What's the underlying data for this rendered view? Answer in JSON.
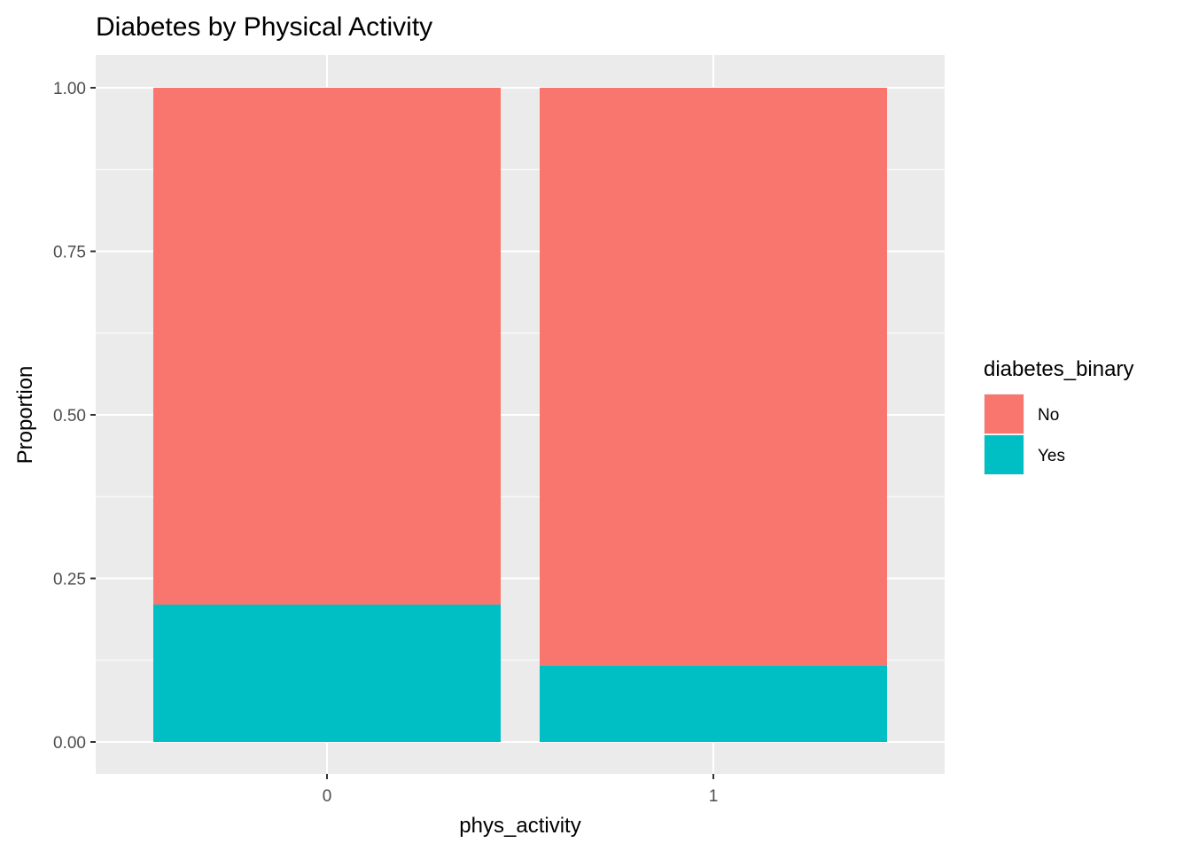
{
  "chart_data": {
    "type": "bar",
    "stacked": true,
    "title": "Diabetes by Physical Activity",
    "xlabel": "phys_activity",
    "ylabel": "Proportion",
    "categories": [
      "0",
      "1"
    ],
    "ylim": [
      0,
      1
    ],
    "yticks": [
      "0.00",
      "0.25",
      "0.50",
      "0.75",
      "1.00"
    ],
    "ytick_values": [
      0,
      0.25,
      0.5,
      0.75,
      1.0
    ],
    "series": [
      {
        "name": "No",
        "color": "#F8766D",
        "values": [
          0.79,
          0.883
        ]
      },
      {
        "name": "Yes",
        "color": "#00BFC4",
        "values": [
          0.21,
          0.117
        ]
      }
    ],
    "legend": {
      "title": "diabetes_binary",
      "placement": "right",
      "items": [
        {
          "label": "No",
          "color": "#F8766D"
        },
        {
          "label": "Yes",
          "color": "#00BFC4"
        }
      ]
    },
    "grid": true,
    "panel_background": "#EBEBEB",
    "grid_color": "#FFFFFF"
  }
}
